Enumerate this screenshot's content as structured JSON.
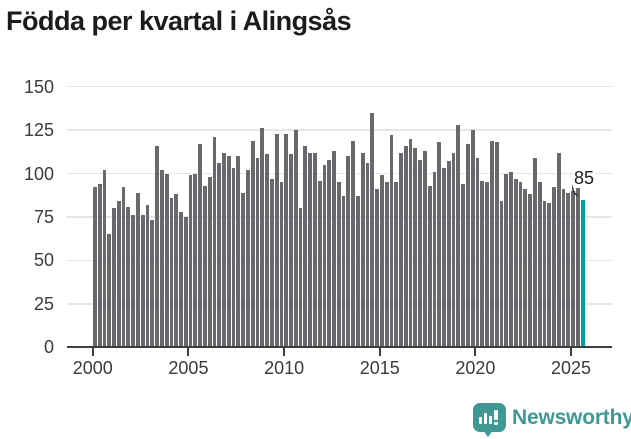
{
  "title": "Födda per kvartal i Alingsås",
  "colors": {
    "bar": "#69686d",
    "highlight": "#00a1a4",
    "grid": "#e6e6e6",
    "axis": "#3f3f3f",
    "tick_text": "#3b3b3b",
    "title_text": "#1c1c1c",
    "annotation_text": "#1d1d1d",
    "brand": "#3f9894"
  },
  "branding": {
    "logo_text": "Newsworthy",
    "logo_icon": "newsworthy-bubble-chart-icon"
  },
  "chart_data": {
    "type": "bar",
    "title": "Födda per kvartal i Alingsås",
    "xlabel": "",
    "ylabel": "",
    "x_start": "2000 Q1",
    "x_end": "2025 Q3",
    "x_tick_labels": [
      "2000",
      "2005",
      "2010",
      "2015",
      "2020",
      "2025"
    ],
    "y_ticks": [
      0,
      25,
      50,
      75,
      100,
      125,
      150
    ],
    "ylim": [
      0,
      150
    ],
    "grid": true,
    "legend": "none",
    "highlight_last_bar": true,
    "annotation": {
      "text": "85",
      "value": 85,
      "target": "last-bar"
    },
    "values": [
      92,
      94,
      102,
      65,
      80,
      84,
      92,
      81,
      76,
      89,
      76,
      82,
      73,
      116,
      102,
      100,
      86,
      88,
      78,
      75,
      99,
      100,
      117,
      93,
      98,
      121,
      106,
      112,
      110,
      103,
      110,
      89,
      102,
      119,
      109,
      126,
      111,
      97,
      123,
      95,
      123,
      111,
      125,
      80,
      116,
      112,
      112,
      96,
      105,
      108,
      113,
      95,
      87,
      110,
      119,
      87,
      112,
      106,
      135,
      91,
      99,
      95,
      122,
      95,
      112,
      116,
      120,
      115,
      108,
      113,
      93,
      101,
      118,
      103,
      107,
      112,
      128,
      94,
      117,
      125,
      109,
      96,
      95,
      119,
      118,
      84,
      100,
      101,
      97,
      95,
      91,
      88,
      109,
      95,
      84,
      83,
      92,
      112,
      91,
      89,
      90,
      92,
      85
    ]
  }
}
